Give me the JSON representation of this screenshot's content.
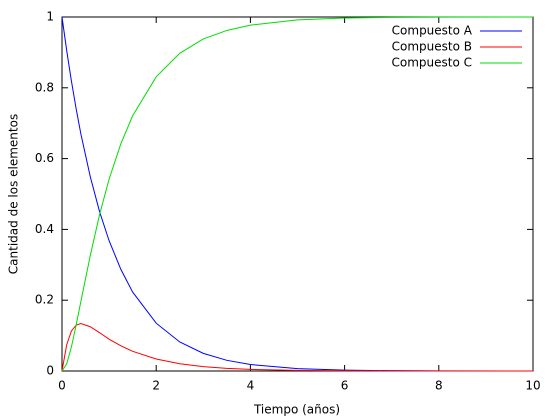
{
  "chart_data": {
    "type": "line",
    "xlabel": "Tiempo (años)",
    "ylabel": "Cantidad de los elementos",
    "x": [
      0,
      0.1,
      0.2,
      0.3,
      0.4,
      0.6,
      0.8,
      1,
      1.25,
      1.5,
      2,
      2.5,
      3,
      3.5,
      4,
      5,
      6,
      7,
      8,
      10
    ],
    "series": [
      {
        "name": "Compuesto A",
        "color": "#0000ff",
        "values": [
          1,
          0.905,
          0.819,
          0.741,
          0.67,
          0.549,
          0.449,
          0.368,
          0.287,
          0.223,
          0.135,
          0.082,
          0.0498,
          0.0302,
          0.0183,
          0.0067,
          0.0025,
          0.0009,
          0.0003,
          0
        ]
      },
      {
        "name": "Compuesto B",
        "color": "#ff0000",
        "values": [
          0,
          0.0745,
          0.113,
          0.1295,
          0.134,
          0.125,
          0.108,
          0.09,
          0.071,
          0.0556,
          0.0338,
          0.0205,
          0.0124,
          0.0075,
          0.0046,
          0.0017,
          0.0006,
          0.0002,
          0.0001,
          0
        ]
      },
      {
        "name": "Compuesto C",
        "color": "#00dd00",
        "values": [
          0,
          0.0205,
          0.068,
          0.1295,
          0.196,
          0.326,
          0.443,
          0.542,
          0.642,
          0.721,
          0.831,
          0.8975,
          0.938,
          0.962,
          0.977,
          0.992,
          0.997,
          0.999,
          0.9996,
          1
        ]
      }
    ],
    "xlim": [
      0,
      10
    ],
    "xticks": [
      0,
      2,
      4,
      6,
      8,
      10
    ],
    "ylim": [
      0,
      1
    ],
    "yticks": [
      0,
      0.2,
      0.4,
      0.6,
      0.8,
      1
    ],
    "legend": "top-right"
  }
}
